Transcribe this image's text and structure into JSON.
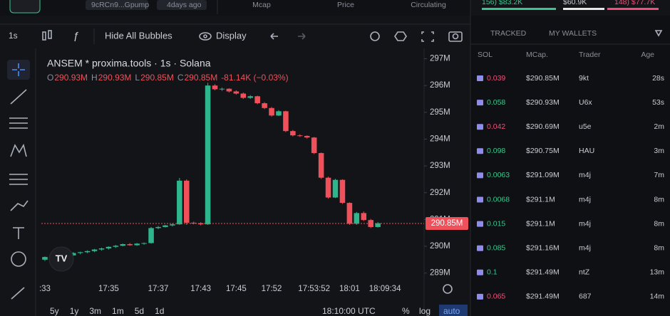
{
  "header": {
    "token": "9cRCn9...Gpump",
    "age": "4days ago",
    "columns": [
      "Mcap",
      "Price",
      "Circulating"
    ],
    "stats": [
      "156) $83.2K",
      "$60.9K",
      "148) $77.7K"
    ]
  },
  "toolbar": {
    "interval": "1s",
    "bubbles": "Hide All Bubbles",
    "display": "Display"
  },
  "chart_data": {
    "type": "candlestick",
    "title": "ANSEM * proxima.tools · 1s · Solana",
    "ohlc_summary": [
      {
        "key": "O",
        "value": "290.93M"
      },
      {
        "key": "H",
        "value": "290.93M"
      },
      {
        "key": "L",
        "value": "290.85M"
      },
      {
        "key": "C",
        "value": "290.85M"
      }
    ],
    "change": "-81.14K (−0.03%)",
    "up_color": "#2fb58b",
    "down_color": "#f0505a",
    "categories": [
      ":33",
      null,
      null,
      null,
      null,
      null,
      null,
      null,
      null,
      "17:35",
      null,
      null,
      null,
      null,
      null,
      null,
      "17:37",
      null,
      null,
      null,
      null,
      null,
      "17:43",
      null,
      null,
      null,
      null,
      "17:45",
      null,
      null,
      null,
      null,
      "17:52",
      null,
      null,
      null,
      null,
      null,
      "17:53:52",
      null,
      null,
      null,
      null,
      "18:01",
      null,
      null,
      null,
      null,
      "18:09:34",
      null
    ],
    "ohlc": [
      [
        289.5,
        289.62,
        289.45,
        289.6
      ],
      [
        289.6,
        289.66,
        289.55,
        289.62
      ],
      [
        289.62,
        289.7,
        289.58,
        289.68
      ],
      [
        289.68,
        289.72,
        289.62,
        289.66
      ],
      [
        289.66,
        289.78,
        289.64,
        289.75
      ],
      [
        289.75,
        289.8,
        289.7,
        289.78
      ],
      [
        289.78,
        289.85,
        289.74,
        289.82
      ],
      [
        289.82,
        289.9,
        289.78,
        289.88
      ],
      [
        289.88,
        289.95,
        289.84,
        289.92
      ],
      [
        289.92,
        290.0,
        289.88,
        289.98
      ],
      [
        289.98,
        290.05,
        289.94,
        290.02
      ],
      [
        290.02,
        290.1,
        290.0,
        290.08
      ],
      [
        290.08,
        290.12,
        290.02,
        290.04
      ],
      [
        290.04,
        290.12,
        290.02,
        290.1
      ],
      [
        290.1,
        290.14,
        290.06,
        290.12
      ],
      [
        290.12,
        290.72,
        290.1,
        290.68
      ],
      [
        290.68,
        290.76,
        290.64,
        290.72
      ],
      [
        290.72,
        290.8,
        290.7,
        290.78
      ],
      [
        290.78,
        290.86,
        290.74,
        290.82
      ],
      [
        290.82,
        292.55,
        290.8,
        292.45
      ],
      [
        292.45,
        292.5,
        290.8,
        290.88
      ],
      [
        290.88,
        290.92,
        290.82,
        290.86
      ],
      [
        290.86,
        290.9,
        290.78,
        290.82
      ],
      [
        290.82,
        296.1,
        290.8,
        296.0
      ],
      [
        296.0,
        296.05,
        295.82,
        295.86
      ],
      [
        295.86,
        295.92,
        295.8,
        295.88
      ],
      [
        295.88,
        295.9,
        295.74,
        295.78
      ],
      [
        295.78,
        295.82,
        295.66,
        295.7
      ],
      [
        295.7,
        295.74,
        295.5,
        295.54
      ],
      [
        295.54,
        295.64,
        295.5,
        295.6
      ],
      [
        295.6,
        295.62,
        295.3,
        295.34
      ],
      [
        295.34,
        295.38,
        295.12,
        295.16
      ],
      [
        295.16,
        295.2,
        294.84,
        294.88
      ],
      [
        294.88,
        295.08,
        294.86,
        295.04
      ],
      [
        295.04,
        295.06,
        294.26,
        294.3
      ],
      [
        294.3,
        294.34,
        294.1,
        294.14
      ],
      [
        294.14,
        294.18,
        294.08,
        294.12
      ],
      [
        294.12,
        294.14,
        294.02,
        294.06
      ],
      [
        294.06,
        294.08,
        293.44,
        293.48
      ],
      [
        293.48,
        293.5,
        292.52,
        292.56
      ],
      [
        292.56,
        292.6,
        291.78,
        291.82
      ],
      [
        291.82,
        292.52,
        291.8,
        292.48
      ],
      [
        292.48,
        292.5,
        291.58,
        291.62
      ],
      [
        291.62,
        291.64,
        290.8,
        290.84
      ],
      [
        290.84,
        291.28,
        290.8,
        291.24
      ],
      [
        291.24,
        291.3,
        290.94,
        290.98
      ],
      [
        290.98,
        291.02,
        290.68,
        290.72
      ],
      [
        290.72,
        290.9,
        290.7,
        290.86
      ],
      null,
      null
    ],
    "ylim": [
      288.7,
      297.2
    ],
    "yticks": [
      {
        "value": 289,
        "label": "289M"
      },
      {
        "value": 290,
        "label": "290M"
      },
      {
        "value": 291,
        "label": "291M"
      },
      {
        "value": 292,
        "label": "292M"
      },
      {
        "value": 293,
        "label": "293M"
      },
      {
        "value": 294,
        "label": "294M"
      },
      {
        "value": 295,
        "label": "295M"
      },
      {
        "value": 296,
        "label": "296M"
      },
      {
        "value": 297,
        "label": "297M"
      }
    ],
    "last_price": {
      "value": 290.85,
      "label": "290.85M",
      "color": "#f0505a"
    }
  },
  "timeframes": [
    "5y",
    "1y",
    "3m",
    "1m",
    "5d",
    "1d"
  ],
  "footer": {
    "time": "18:10:00 UTC",
    "percent": "%",
    "log": "log",
    "auto": "auto"
  },
  "trades": {
    "tabs": [
      "TRACKED",
      "MY WALLETS"
    ],
    "columns": [
      "SOL",
      "MCap.",
      "Trader",
      "Age"
    ],
    "rows": [
      {
        "sol": "0.039",
        "mcap": "$290.85M",
        "trader": "9kt",
        "age": "28s",
        "color": "#f0507a"
      },
      {
        "sol": "0.058",
        "mcap": "$290.93M",
        "trader": "U6x",
        "age": "53s",
        "color": "#3cc68f"
      },
      {
        "sol": "0.042",
        "mcap": "$290.69M",
        "trader": "u5e",
        "age": "2m",
        "color": "#f0507a"
      },
      {
        "sol": "0.098",
        "mcap": "$290.75M",
        "trader": "HAU",
        "age": "3m",
        "color": "#3cc68f"
      },
      {
        "sol": "0.0063",
        "mcap": "$291.09M",
        "trader": "m4j",
        "age": "7m",
        "color": "#3cc68f"
      },
      {
        "sol": "0.0068",
        "mcap": "$291.1M",
        "trader": "m4j",
        "age": "8m",
        "color": "#3cc68f"
      },
      {
        "sol": "0.015",
        "mcap": "$291.1M",
        "trader": "m4j",
        "age": "8m",
        "color": "#3cc68f"
      },
      {
        "sol": "0.085",
        "mcap": "$291.16M",
        "trader": "m4j",
        "age": "8m",
        "color": "#3cc68f"
      },
      {
        "sol": "0.1",
        "mcap": "$291.49M",
        "trader": "ntZ",
        "age": "13m",
        "color": "#3cc68f"
      },
      {
        "sol": "0.065",
        "mcap": "$291.49M",
        "trader": "687",
        "age": "14m",
        "color": "#f0507a"
      }
    ]
  }
}
